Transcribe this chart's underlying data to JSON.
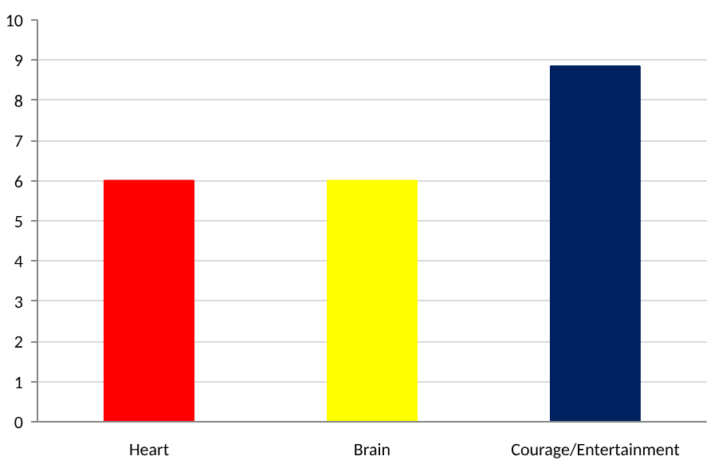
{
  "chart_data": {
    "type": "bar",
    "categories": [
      "Heart",
      "Brain",
      "Courage/Entertainment"
    ],
    "values": [
      6,
      6,
      8.85
    ],
    "colors": [
      "#ff0000",
      "#ffff00",
      "#002060"
    ],
    "ylim": [
      0,
      10
    ],
    "yticks": [
      0,
      1,
      2,
      3,
      4,
      5,
      6,
      7,
      8,
      9,
      10
    ],
    "grid": "y"
  }
}
